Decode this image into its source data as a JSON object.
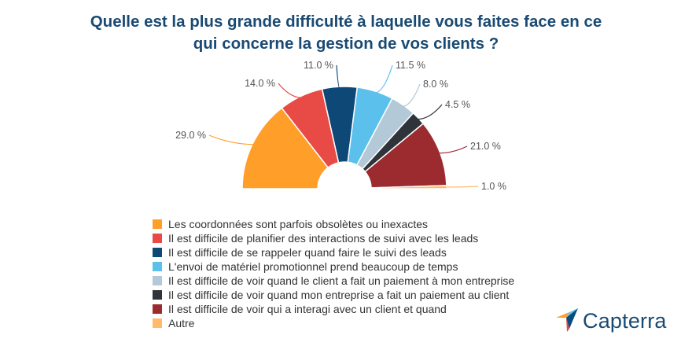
{
  "chart_data": {
    "type": "pie",
    "variant": "half-donut",
    "title_lines": [
      "Quelle est la plus grande difficulté à laquelle vous faites face en ce",
      "qui concerne la gestion de vos clients ?"
    ],
    "series": [
      {
        "name": "Les coordonnées sont parfois obsolètes ou inexactes",
        "value": 29.0,
        "label": "29.0 %",
        "color": "#ff9f2a"
      },
      {
        "name": "Il est difficile de planifier des interactions de suivi avec les leads",
        "value": 14.0,
        "label": "14.0 %",
        "color": "#e84a46"
      },
      {
        "name": "Il est difficile de se rappeler quand faire le suivi des leads",
        "value": 11.0,
        "label": "11.0 %",
        "color": "#0d4877"
      },
      {
        "name": "L'envoi de matériel promotionnel prend beaucoup de temps",
        "value": 11.5,
        "label": "11.5 %",
        "color": "#5bc1ec"
      },
      {
        "name": "Il est difficile de voir quand le client a fait un paiement à mon entreprise",
        "value": 8.0,
        "label": "8.0 %",
        "color": "#b3c9d7"
      },
      {
        "name": "Il est difficile de voir quand mon entreprise a fait un paiement au client",
        "value": 4.5,
        "label": "4.5 %",
        "color": "#2e3439"
      },
      {
        "name": "Il est difficile de voir qui a interagi avec un client et quand",
        "value": 21.0,
        "label": "21.0 %",
        "color": "#9b2b2f"
      },
      {
        "name": "Autre",
        "value": 1.0,
        "label": "1.0 %",
        "color": "#ffbb6a"
      }
    ]
  },
  "logo": {
    "text": "Capterra"
  }
}
